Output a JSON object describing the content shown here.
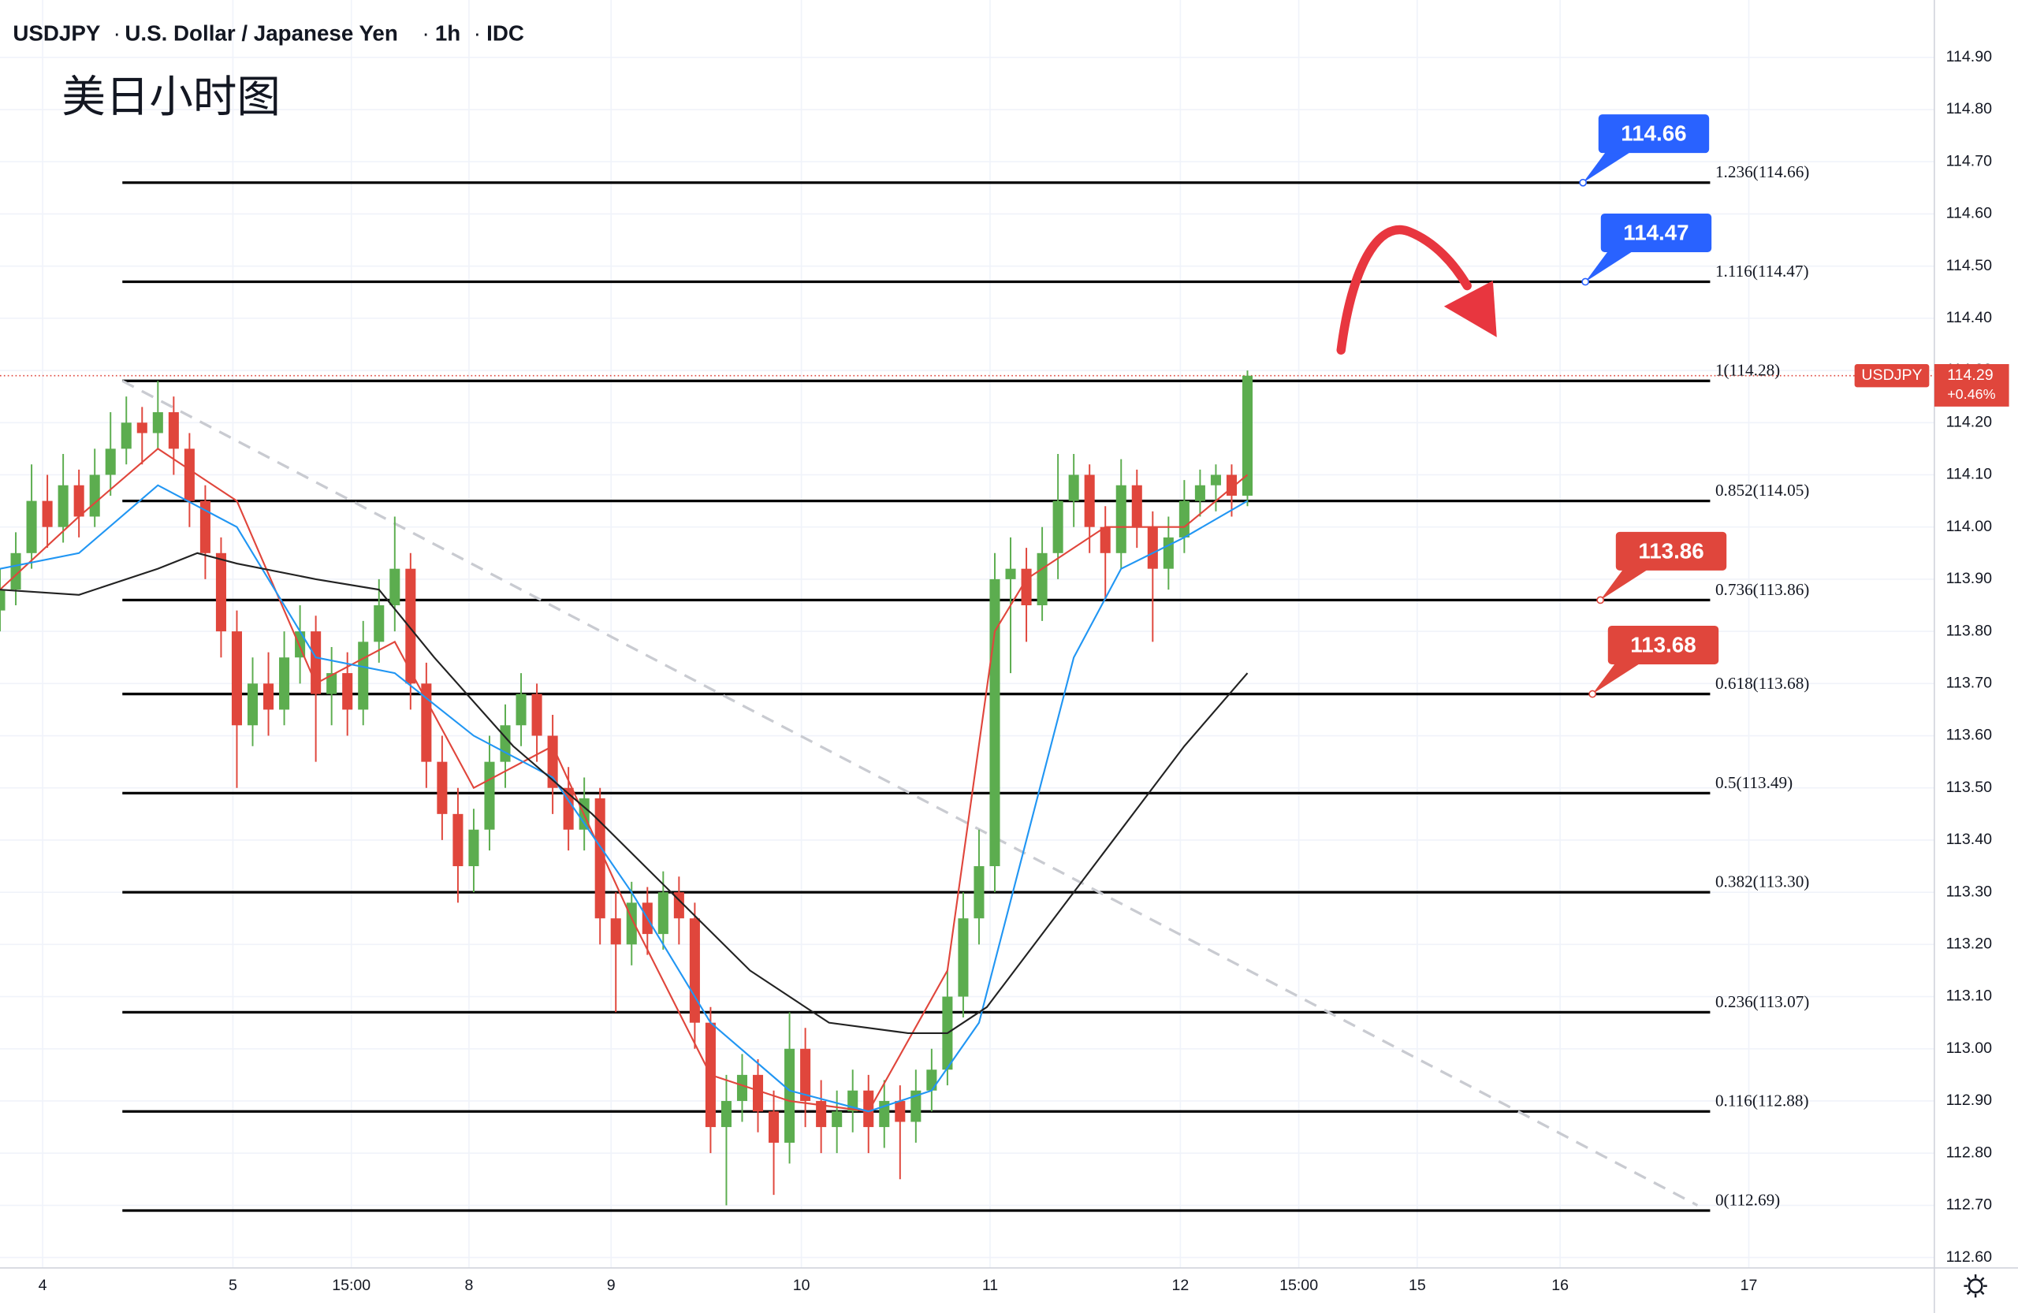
{
  "header": {
    "symbol": "USDJPY",
    "name": "U.S. Dollar / Japanese Yen",
    "interval": "1h",
    "source": "IDC"
  },
  "chart_data": {
    "type": "candlestick",
    "title": "美日小时图",
    "up_color": "#5cad4f",
    "down_color": "#e0463c",
    "xlim": [
      0,
      245
    ],
    "xticks": [
      {
        "value": 5.4,
        "label": "4"
      },
      {
        "value": 29.5,
        "label": "5"
      },
      {
        "value": 44.5,
        "label": "15:00"
      },
      {
        "value": 59.4,
        "label": "8"
      },
      {
        "value": 77.4,
        "label": "9"
      },
      {
        "value": 101.5,
        "label": "10"
      },
      {
        "value": 125.4,
        "label": "11"
      },
      {
        "value": 149.5,
        "label": "12"
      },
      {
        "value": 164.5,
        "label": "15:00"
      },
      {
        "value": 179.5,
        "label": "15"
      },
      {
        "value": 197.6,
        "label": "16"
      },
      {
        "value": 221.5,
        "label": "17"
      }
    ],
    "ylim": [
      112.58,
      115.01
    ],
    "yticks": [
      {
        "value": 112.6,
        "label": "112.60"
      },
      {
        "value": 112.7,
        "label": "112.70"
      },
      {
        "value": 112.8,
        "label": "112.80"
      },
      {
        "value": 112.9,
        "label": "112.90"
      },
      {
        "value": 113.0,
        "label": "113.00"
      },
      {
        "value": 113.1,
        "label": "113.10"
      },
      {
        "value": 113.2,
        "label": "113.20"
      },
      {
        "value": 113.3,
        "label": "113.30"
      },
      {
        "value": 113.4,
        "label": "113.40"
      },
      {
        "value": 113.5,
        "label": "113.50"
      },
      {
        "value": 113.6,
        "label": "113.60"
      },
      {
        "value": 113.7,
        "label": "113.70"
      },
      {
        "value": 113.8,
        "label": "113.80"
      },
      {
        "value": 113.9,
        "label": "113.90"
      },
      {
        "value": 114.0,
        "label": "114.00"
      },
      {
        "value": 114.1,
        "label": "114.10"
      },
      {
        "value": 114.2,
        "label": "114.20"
      },
      {
        "value": 114.3,
        "label": "114.30"
      },
      {
        "value": 114.4,
        "label": "114.40"
      },
      {
        "value": 114.5,
        "label": "114.50"
      },
      {
        "value": 114.6,
        "label": "114.60"
      },
      {
        "value": 114.7,
        "label": "114.70"
      },
      {
        "value": 114.8,
        "label": "114.80"
      },
      {
        "value": 114.9,
        "label": "114.90"
      }
    ],
    "grid": true,
    "x": [
      0,
      2,
      4,
      6,
      8,
      10,
      12,
      14,
      16,
      18,
      20,
      22,
      24,
      26,
      28,
      30,
      32,
      34,
      36,
      38,
      40,
      42,
      44,
      46,
      48,
      50,
      52,
      54,
      56,
      58,
      60,
      62,
      64,
      66,
      68,
      70,
      72,
      74,
      76,
      78,
      80,
      82,
      84,
      86,
      88,
      90,
      92,
      94,
      96,
      98,
      100,
      102,
      104,
      106,
      108,
      110,
      112,
      114,
      116,
      118,
      120,
      122,
      124,
      126,
      128,
      130,
      132,
      134,
      136,
      138,
      140,
      142,
      144,
      146,
      148,
      150,
      152,
      154,
      156,
      158
    ],
    "ohlc": [
      [
        113.84,
        113.92,
        113.8,
        113.88
      ],
      [
        113.88,
        113.99,
        113.85,
        113.95
      ],
      [
        113.95,
        114.12,
        113.92,
        114.05
      ],
      [
        114.05,
        114.1,
        113.96,
        114.0
      ],
      [
        114.0,
        114.14,
        113.97,
        114.08
      ],
      [
        114.08,
        114.11,
        113.98,
        114.02
      ],
      [
        114.02,
        114.15,
        114.0,
        114.1
      ],
      [
        114.1,
        114.22,
        114.06,
        114.15
      ],
      [
        114.15,
        114.25,
        114.12,
        114.2
      ],
      [
        114.2,
        114.23,
        114.12,
        114.18
      ],
      [
        114.18,
        114.28,
        114.15,
        114.22
      ],
      [
        114.22,
        114.25,
        114.1,
        114.15
      ],
      [
        114.15,
        114.18,
        114.0,
        114.05
      ],
      [
        114.05,
        114.08,
        113.9,
        113.95
      ],
      [
        113.95,
        113.98,
        113.75,
        113.8
      ],
      [
        113.8,
        113.84,
        113.5,
        113.62
      ],
      [
        113.62,
        113.75,
        113.58,
        113.7
      ],
      [
        113.7,
        113.76,
        113.6,
        113.65
      ],
      [
        113.65,
        113.8,
        113.62,
        113.75
      ],
      [
        113.75,
        113.85,
        113.7,
        113.8
      ],
      [
        113.8,
        113.83,
        113.55,
        113.68
      ],
      [
        113.68,
        113.77,
        113.62,
        113.72
      ],
      [
        113.72,
        113.76,
        113.6,
        113.65
      ],
      [
        113.65,
        113.82,
        113.62,
        113.78
      ],
      [
        113.78,
        113.9,
        113.74,
        113.85
      ],
      [
        113.85,
        114.02,
        113.8,
        113.92
      ],
      [
        113.92,
        113.95,
        113.65,
        113.7
      ],
      [
        113.7,
        113.74,
        113.5,
        113.55
      ],
      [
        113.55,
        113.6,
        113.4,
        113.45
      ],
      [
        113.45,
        113.5,
        113.28,
        113.35
      ],
      [
        113.35,
        113.46,
        113.3,
        113.42
      ],
      [
        113.42,
        113.6,
        113.38,
        113.55
      ],
      [
        113.55,
        113.66,
        113.5,
        113.62
      ],
      [
        113.62,
        113.72,
        113.58,
        113.68
      ],
      [
        113.68,
        113.7,
        113.55,
        113.6
      ],
      [
        113.6,
        113.64,
        113.45,
        113.5
      ],
      [
        113.5,
        113.54,
        113.38,
        113.42
      ],
      [
        113.42,
        113.52,
        113.38,
        113.48
      ],
      [
        113.48,
        113.5,
        113.2,
        113.25
      ],
      [
        113.25,
        113.3,
        113.07,
        113.2
      ],
      [
        113.2,
        113.32,
        113.16,
        113.28
      ],
      [
        113.28,
        113.31,
        113.18,
        113.22
      ],
      [
        113.22,
        113.34,
        113.19,
        113.3
      ],
      [
        113.3,
        113.33,
        113.2,
        113.25
      ],
      [
        113.25,
        113.28,
        113.0,
        113.05
      ],
      [
        113.05,
        113.08,
        112.8,
        112.85
      ],
      [
        112.85,
        112.95,
        112.7,
        112.9
      ],
      [
        112.9,
        112.99,
        112.86,
        112.95
      ],
      [
        112.95,
        112.98,
        112.84,
        112.88
      ],
      [
        112.88,
        112.92,
        112.72,
        112.82
      ],
      [
        112.82,
        113.07,
        112.78,
        113.0
      ],
      [
        113.0,
        113.04,
        112.85,
        112.9
      ],
      [
        112.9,
        112.94,
        112.8,
        112.85
      ],
      [
        112.85,
        112.92,
        112.8,
        112.88
      ],
      [
        112.88,
        112.96,
        112.84,
        112.92
      ],
      [
        112.92,
        112.95,
        112.8,
        112.85
      ],
      [
        112.85,
        112.94,
        112.81,
        112.9
      ],
      [
        112.9,
        112.93,
        112.75,
        112.86
      ],
      [
        112.86,
        112.96,
        112.82,
        112.92
      ],
      [
        112.92,
        113.0,
        112.88,
        112.96
      ],
      [
        112.96,
        113.15,
        112.93,
        113.1
      ],
      [
        113.1,
        113.3,
        113.06,
        113.25
      ],
      [
        113.25,
        113.42,
        113.2,
        113.35
      ],
      [
        113.35,
        113.95,
        113.3,
        113.9
      ],
      [
        113.9,
        113.98,
        113.72,
        113.92
      ],
      [
        113.92,
        113.96,
        113.78,
        113.85
      ],
      [
        113.85,
        114.0,
        113.82,
        113.95
      ],
      [
        113.95,
        114.14,
        113.9,
        114.05
      ],
      [
        114.05,
        114.14,
        114.0,
        114.1
      ],
      [
        114.1,
        114.12,
        113.95,
        114.0
      ],
      [
        114.0,
        114.04,
        113.86,
        113.95
      ],
      [
        113.95,
        114.13,
        113.92,
        114.08
      ],
      [
        114.08,
        114.11,
        113.96,
        114.0
      ],
      [
        114.0,
        114.03,
        113.78,
        113.92
      ],
      [
        113.92,
        114.02,
        113.88,
        113.98
      ],
      [
        113.98,
        114.09,
        113.95,
        114.05
      ],
      [
        114.05,
        114.11,
        114.02,
        114.08
      ],
      [
        114.08,
        114.12,
        114.03,
        114.1
      ],
      [
        114.1,
        114.12,
        114.02,
        114.06
      ],
      [
        114.06,
        114.3,
        114.04,
        114.29
      ]
    ],
    "lines": [
      {
        "color": "#e0463c",
        "x": [
          0,
          10,
          20,
          30,
          40,
          50,
          60,
          70,
          80,
          90,
          100,
          110,
          120,
          126,
          130,
          140,
          150,
          158
        ],
        "values": [
          113.88,
          114.02,
          114.15,
          114.05,
          113.7,
          113.78,
          113.5,
          113.58,
          113.25,
          112.95,
          112.9,
          112.88,
          113.15,
          113.8,
          113.9,
          114.0,
          114.0,
          114.1
        ]
      },
      {
        "color": "#2196f3",
        "x": [
          0,
          10,
          20,
          30,
          40,
          50,
          60,
          70,
          80,
          90,
          100,
          110,
          118,
          124,
          130,
          136,
          142,
          150,
          158
        ],
        "values": [
          113.92,
          113.95,
          114.08,
          114.0,
          113.75,
          113.72,
          113.6,
          113.52,
          113.3,
          113.05,
          112.92,
          112.88,
          112.92,
          113.05,
          113.4,
          113.75,
          113.92,
          113.98,
          114.05
        ]
      },
      {
        "color": "#222222",
        "x": [
          0,
          10,
          20,
          25,
          30,
          40,
          48,
          55,
          65,
          75,
          85,
          95,
          105,
          115,
          120,
          125,
          132,
          140,
          150,
          158
        ],
        "values": [
          113.88,
          113.87,
          113.92,
          113.95,
          113.93,
          113.9,
          113.88,
          113.75,
          113.58,
          113.45,
          113.3,
          113.15,
          113.05,
          113.03,
          113.03,
          113.08,
          113.22,
          113.38,
          113.58,
          113.72
        ]
      }
    ],
    "trendline": {
      "x": [
        15.5,
        215
      ],
      "values": [
        114.28,
        112.7
      ]
    },
    "level_x": [
      15.5,
      216.6
    ],
    "levels": [
      {
        "value": 114.66,
        "label": "1.236(114.66)"
      },
      {
        "value": 114.47,
        "label": "1.116(114.47)"
      },
      {
        "value": 114.28,
        "label": "1(114.28)"
      },
      {
        "value": 114.05,
        "label": "0.852(114.05)"
      },
      {
        "value": 113.86,
        "label": "0.736(113.86)"
      },
      {
        "value": 113.68,
        "label": "0.618(113.68)"
      },
      {
        "value": 113.49,
        "label": "0.5(113.49)"
      },
      {
        "value": 113.3,
        "label": "0.382(113.30)"
      },
      {
        "value": 113.07,
        "label": "0.236(113.07)"
      },
      {
        "value": 112.88,
        "label": "0.116(112.88)"
      },
      {
        "value": 112.69,
        "label": "0(112.69)"
      }
    ],
    "callouts": [
      {
        "value": 114.66,
        "color": "#2962ff",
        "x": 200.5
      },
      {
        "value": 114.47,
        "color": "#2962ff",
        "x": 200.8
      },
      {
        "value": 113.86,
        "color": "#e0463c",
        "x": 202.7
      },
      {
        "value": 113.68,
        "color": "#e0463c",
        "x": 201.7
      }
    ],
    "last_price": {
      "symbol": "USDJPY",
      "value": 114.29,
      "change": "+0.46%",
      "color": "#e0463c"
    }
  }
}
